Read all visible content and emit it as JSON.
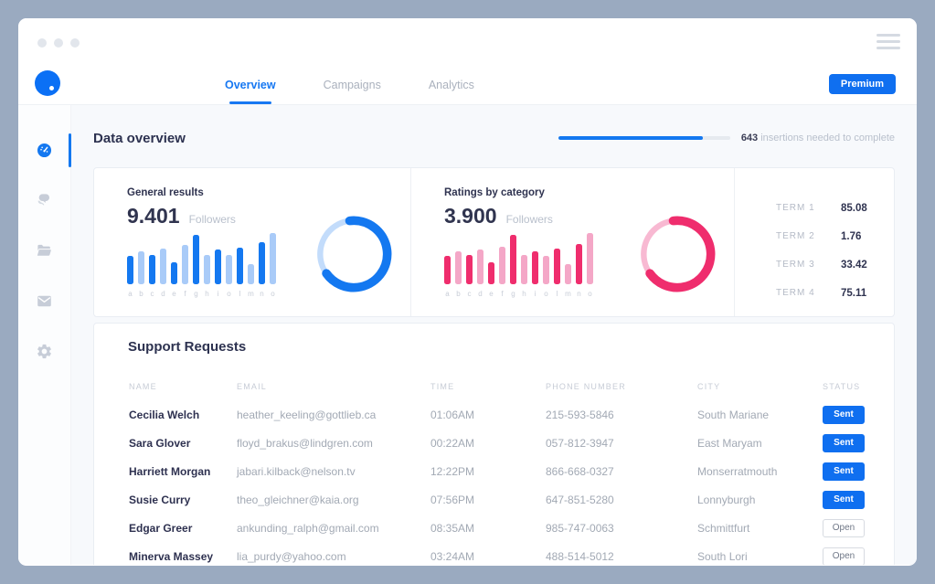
{
  "header": {
    "tabs": [
      {
        "label": "Overview",
        "active": true
      },
      {
        "label": "Campaigns",
        "active": false
      },
      {
        "label": "Analytics",
        "active": false
      }
    ],
    "premium_label": "Premium"
  },
  "sidebar": {
    "items": [
      {
        "icon": "dashboard-icon",
        "active": true
      },
      {
        "icon": "chat-icon",
        "active": false
      },
      {
        "icon": "folder-icon",
        "active": false
      },
      {
        "icon": "mail-icon",
        "active": false
      },
      {
        "icon": "settings-icon",
        "active": false
      }
    ]
  },
  "overview": {
    "title": "Data overview",
    "progress": {
      "value_label": "643",
      "text": " insertions needed to complete",
      "percent": 84
    }
  },
  "chart_data": [
    {
      "type": "bar",
      "title": "General results",
      "value": "9.401",
      "value_suffix": "Followers",
      "categories": [
        "a",
        "b",
        "c",
        "d",
        "e",
        "f",
        "g",
        "h",
        "i",
        "o",
        "l",
        "m",
        "n",
        "o"
      ],
      "values": [
        55,
        64,
        57,
        70,
        43,
        76,
        96,
        58,
        67,
        58,
        72,
        40,
        82,
        100
      ],
      "donut_percent": 67,
      "colors": {
        "primary": "#1478f0",
        "secondary": "#a9cbf8",
        "track": "#c3dcfb"
      }
    },
    {
      "type": "bar",
      "title": "Ratings by category",
      "value": "3.900",
      "value_suffix": "Followers",
      "categories": [
        "a",
        "b",
        "c",
        "d",
        "e",
        "f",
        "g",
        "h",
        "i",
        "o",
        "l",
        "m",
        "n",
        "o"
      ],
      "values": [
        55,
        64,
        57,
        68,
        43,
        74,
        96,
        58,
        65,
        56,
        70,
        40,
        78,
        100
      ],
      "donut_percent": 67,
      "colors": {
        "primary": "#ef2d6d",
        "secondary": "#f4a7c7",
        "track": "#f8b9d2"
      }
    }
  ],
  "terms": [
    {
      "label": "TERM 1",
      "value": "85.08"
    },
    {
      "label": "TERM 2",
      "value": "1.76"
    },
    {
      "label": "TERM 3",
      "value": "33.42"
    },
    {
      "label": "TERM 4",
      "value": "75.11"
    }
  ],
  "table": {
    "title": "Support Requests",
    "columns": [
      "NAME",
      "EMAIL",
      "TIME",
      "PHONE NUMBER",
      "CITY",
      "STATUS"
    ],
    "rows": [
      {
        "name": "Cecilia Welch",
        "email": "heather_keeling@gottlieb.ca",
        "time": "01:06AM",
        "phone": "215-593-5846",
        "city": "South Mariane",
        "status": "Sent"
      },
      {
        "name": "Sara Glover",
        "email": "floyd_brakus@lindgren.com",
        "time": "00:22AM",
        "phone": "057-812-3947",
        "city": "East Maryam",
        "status": "Sent"
      },
      {
        "name": "Harriett Morgan",
        "email": "jabari.kilback@nelson.tv",
        "time": "12:22PM",
        "phone": "866-668-0327",
        "city": "Monserratmouth",
        "status": "Sent"
      },
      {
        "name": "Susie Curry",
        "email": "theo_gleichner@kaia.org",
        "time": "07:56PM",
        "phone": "647-851-5280",
        "city": "Lonnyburgh",
        "status": "Sent"
      },
      {
        "name": "Edgar Greer",
        "email": "ankunding_ralph@gmail.com",
        "time": "08:35AM",
        "phone": "985-747-0063",
        "city": "Schmittfurt",
        "status": "Open"
      },
      {
        "name": "Minerva Massey",
        "email": "lia_purdy@yahoo.com",
        "time": "03:24AM",
        "phone": "488-514-5012",
        "city": "South Lori",
        "status": "Open"
      }
    ]
  }
}
